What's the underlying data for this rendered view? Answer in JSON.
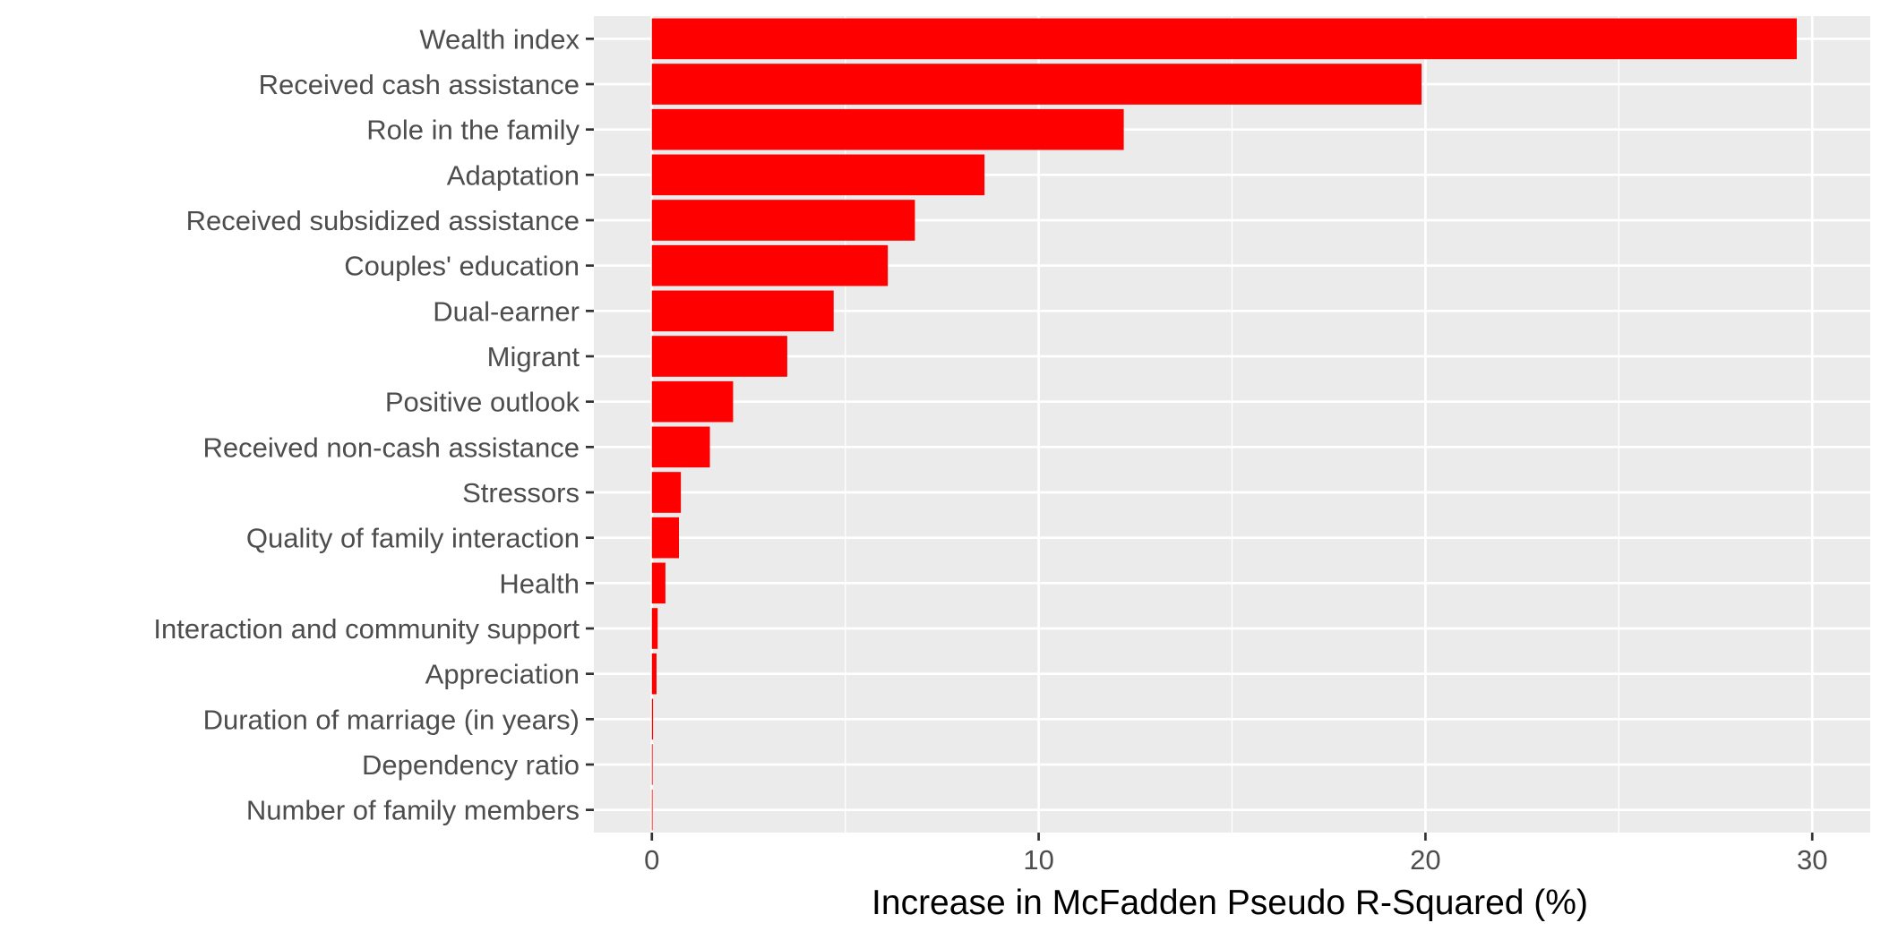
{
  "chart_data": {
    "type": "bar",
    "orientation": "horizontal",
    "title": "",
    "xlabel": "Increase in McFadden Pseudo R-Squared (%)",
    "ylabel": "",
    "xlim": [
      -1.5,
      31.5
    ],
    "x_ticks": [
      0,
      10,
      20,
      30
    ],
    "x_tick_labels": [
      "0",
      "10",
      "20",
      "30"
    ],
    "grid": true,
    "legend": "none",
    "bar_color": "#FF0000",
    "panel_background": "#EBEBEB",
    "categories": [
      "Wealth index",
      "Received cash assistance",
      "Role in the family",
      "Adaptation",
      "Received subsidized assistance",
      "Couples' education",
      "Dual-earner",
      "Migrant",
      "Positive outlook",
      "Received non-cash assistance",
      "Stressors",
      "Quality of family interaction",
      "Health",
      "Interaction and community support",
      "Appreciation",
      "Duration of marriage (in years)",
      "Dependency ratio",
      "Number of family members"
    ],
    "values": [
      29.6,
      19.9,
      12.2,
      8.6,
      6.8,
      6.1,
      4.7,
      3.5,
      2.1,
      1.5,
      0.75,
      0.7,
      0.35,
      0.15,
      0.12,
      0.03,
      0.02,
      0.01
    ]
  }
}
